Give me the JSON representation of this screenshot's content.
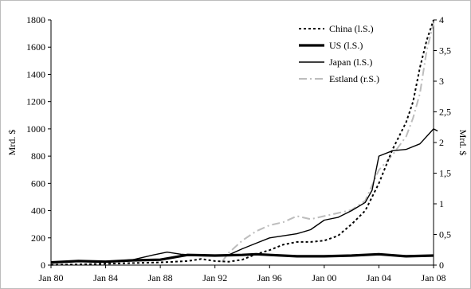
{
  "chart_data": {
    "type": "line",
    "title": "",
    "xlabel": "",
    "ylabel_left": "Mrd. $",
    "ylabel_right": "Mrd. $",
    "x_ticks": [
      "Jan 80",
      "Jan 84",
      "Jan 88",
      "Jan 92",
      "Jan 96",
      "Jan 00",
      "Jan 04",
      "Jan 08"
    ],
    "ylim_left": [
      0,
      1800
    ],
    "yticks_left": [
      "0",
      "200",
      "400",
      "600",
      "800",
      "1000",
      "1200",
      "1400",
      "1600",
      "1800"
    ],
    "ylim_right": [
      0,
      4
    ],
    "yticks_right": [
      "0",
      "0,5",
      "1",
      "1,5",
      "2",
      "2,5",
      "3",
      "3,5",
      "4"
    ],
    "grid": false,
    "legend_position": "top-right",
    "series": [
      {
        "name": "China (l.S.)",
        "axis": "left",
        "color": "#000000",
        "style": "dotted",
        "points": [
          [
            1980.0,
            2
          ],
          [
            1982.0,
            5
          ],
          [
            1984.0,
            10
          ],
          [
            1986.0,
            15
          ],
          [
            1988.0,
            20
          ],
          [
            1990.0,
            30
          ],
          [
            1991.0,
            45
          ],
          [
            1992.0,
            30
          ],
          [
            1993.0,
            25
          ],
          [
            1994.0,
            40
          ],
          [
            1995.0,
            80
          ],
          [
            1996.0,
            110
          ],
          [
            1997.0,
            150
          ],
          [
            1998.0,
            170
          ],
          [
            1999.0,
            170
          ],
          [
            2000.0,
            180
          ],
          [
            2001.0,
            215
          ],
          [
            2002.0,
            300
          ],
          [
            2003.0,
            400
          ],
          [
            2004.0,
            600
          ],
          [
            2005.0,
            850
          ],
          [
            2006.0,
            1050
          ],
          [
            2006.5,
            1200
          ],
          [
            2007.0,
            1450
          ],
          [
            2007.5,
            1650
          ],
          [
            2008.0,
            1800
          ]
        ]
      },
      {
        "name": "US (l.S.)",
        "axis": "left",
        "color": "#000000",
        "style": "thick",
        "points": [
          [
            1980.0,
            20
          ],
          [
            1982.0,
            30
          ],
          [
            1984.0,
            25
          ],
          [
            1986.0,
            35
          ],
          [
            1988.0,
            40
          ],
          [
            1990.0,
            75
          ],
          [
            1992.0,
            70
          ],
          [
            1994.0,
            75
          ],
          [
            1995.0,
            80
          ],
          [
            1996.0,
            75
          ],
          [
            1998.0,
            65
          ],
          [
            2000.0,
            65
          ],
          [
            2002.0,
            70
          ],
          [
            2004.0,
            80
          ],
          [
            2006.0,
            65
          ],
          [
            2008.0,
            70
          ]
        ]
      },
      {
        "name": "Japan (l.S.)",
        "axis": "left",
        "color": "#000000",
        "style": "solid",
        "points": [
          [
            1980.0,
            20
          ],
          [
            1982.0,
            25
          ],
          [
            1984.0,
            27
          ],
          [
            1986.0,
            40
          ],
          [
            1987.5,
            75
          ],
          [
            1988.5,
            95
          ],
          [
            1989.5,
            80
          ],
          [
            1991.0,
            70
          ],
          [
            1993.0,
            75
          ],
          [
            1994.0,
            120
          ],
          [
            1995.0,
            160
          ],
          [
            1996.0,
            200
          ],
          [
            1997.0,
            215
          ],
          [
            1998.0,
            230
          ],
          [
            1999.0,
            260
          ],
          [
            2000.0,
            330
          ],
          [
            2001.0,
            350
          ],
          [
            2002.0,
            400
          ],
          [
            2003.0,
            460
          ],
          [
            2003.5,
            550
          ],
          [
            2004.0,
            800
          ],
          [
            2005.0,
            840
          ],
          [
            2006.0,
            850
          ],
          [
            2007.0,
            890
          ],
          [
            2008.0,
            1000
          ],
          [
            2008.3,
            985
          ]
        ]
      },
      {
        "name": "Estland (r.S.)",
        "axis": "right",
        "color": "#bdbdbd",
        "style": "dashdot",
        "points": [
          [
            1992.5,
            0.05
          ],
          [
            1993.0,
            0.2
          ],
          [
            1994.0,
            0.4
          ],
          [
            1995.0,
            0.55
          ],
          [
            1996.0,
            0.65
          ],
          [
            1997.0,
            0.7
          ],
          [
            1998.0,
            0.8
          ],
          [
            1999.0,
            0.75
          ],
          [
            2000.0,
            0.8
          ],
          [
            2001.0,
            0.85
          ],
          [
            2002.0,
            0.9
          ],
          [
            2003.0,
            1.05
          ],
          [
            2004.0,
            1.55
          ],
          [
            2005.0,
            1.8
          ],
          [
            2006.0,
            2.1
          ],
          [
            2006.5,
            2.4
          ],
          [
            2007.0,
            2.8
          ],
          [
            2007.5,
            3.5
          ],
          [
            2008.0,
            3.95
          ]
        ]
      }
    ]
  }
}
